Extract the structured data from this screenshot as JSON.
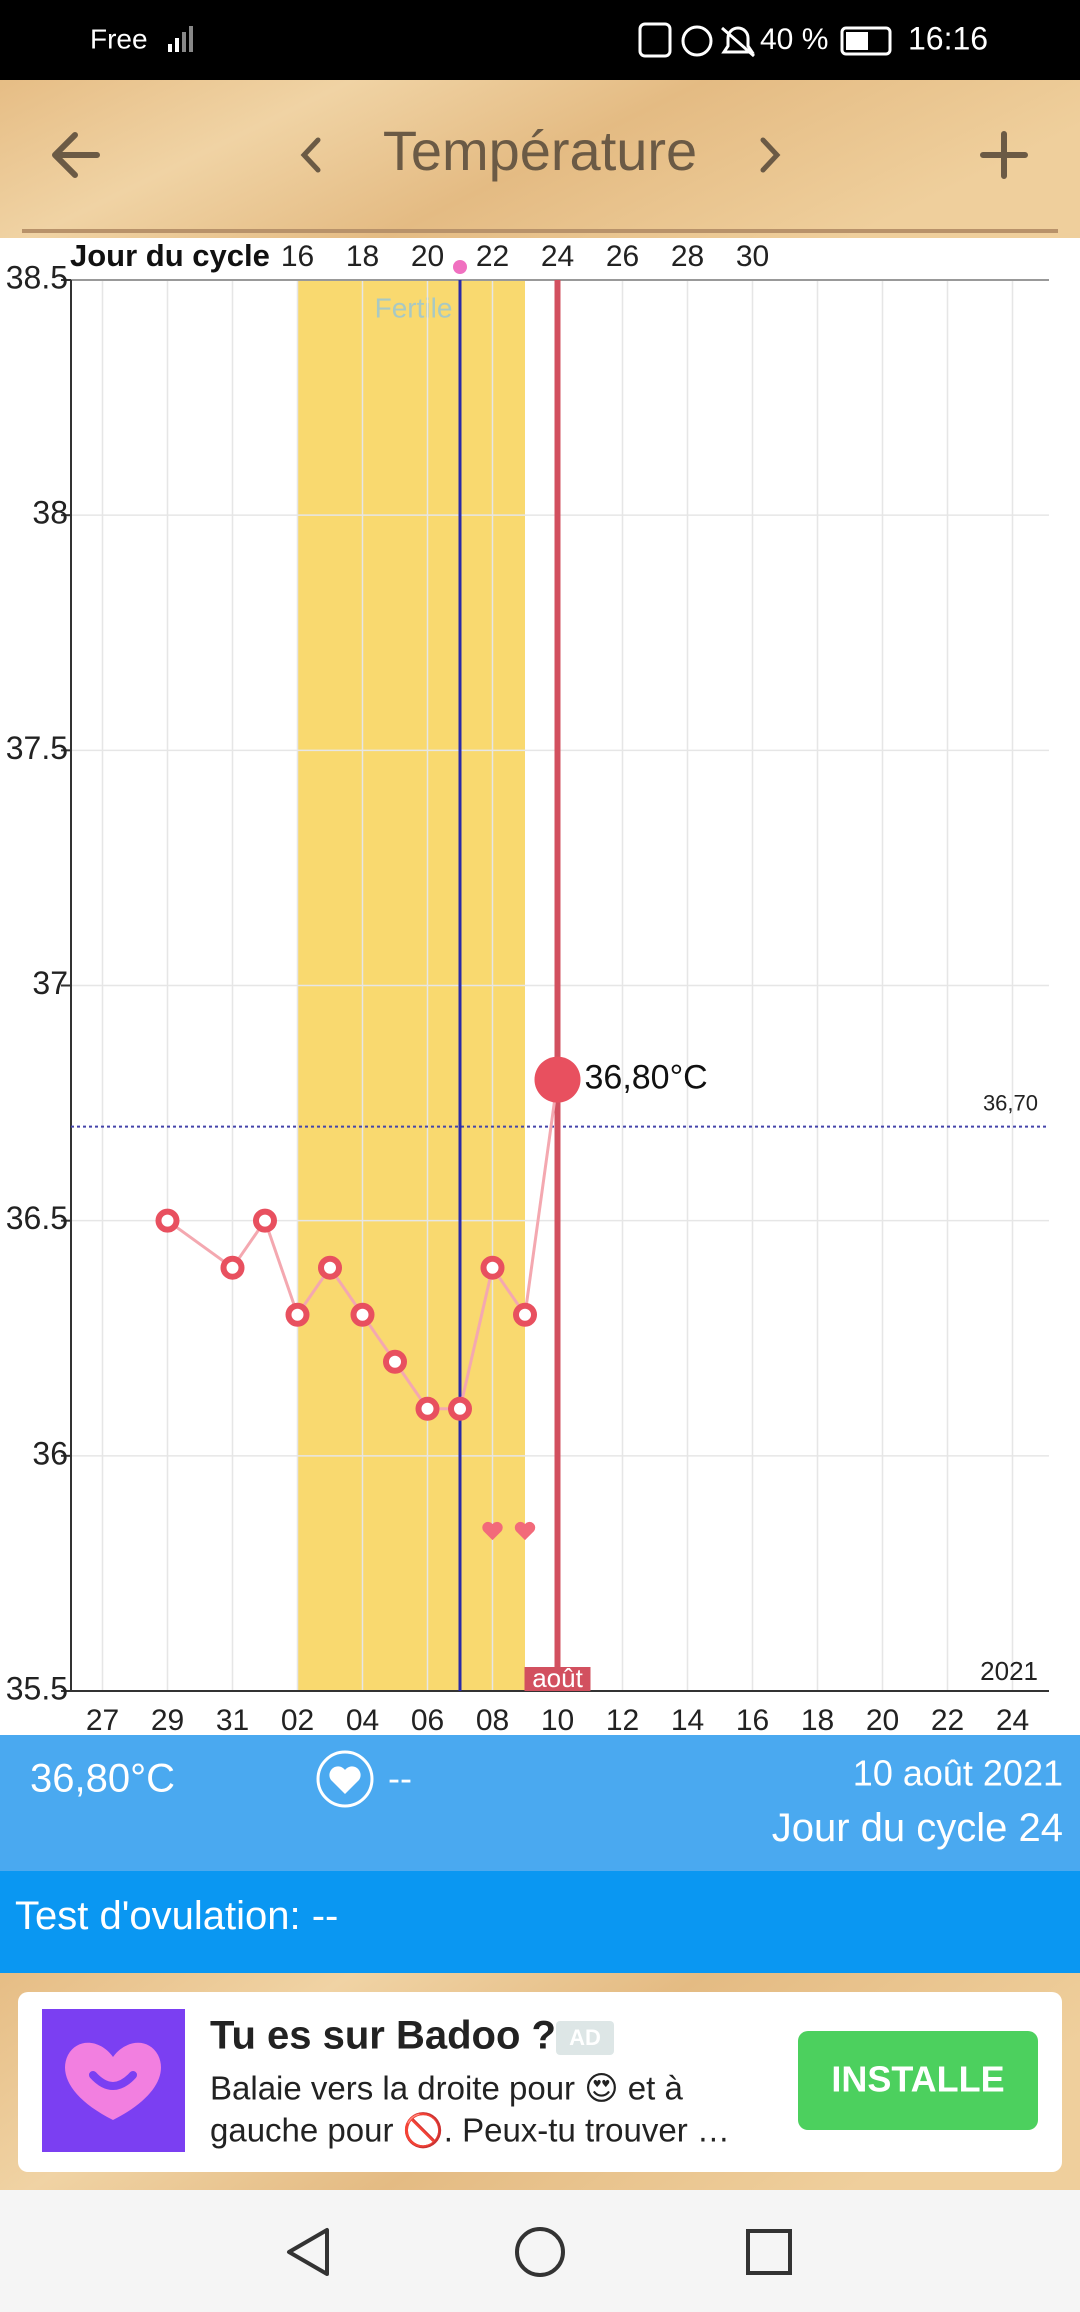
{
  "status_bar": {
    "carrier": "Free",
    "battery": "40 %",
    "time": "16:16"
  },
  "header": {
    "title": "Température"
  },
  "chart_data": {
    "type": "line",
    "top_axis": {
      "label": "Jour du cycle",
      "ticks": [
        16,
        18,
        20,
        22,
        24,
        26,
        28,
        30
      ]
    },
    "categories": [
      null,
      "27",
      null,
      "29",
      null,
      "31",
      null,
      "02",
      null,
      "04",
      null,
      "06",
      null,
      "08",
      null,
      "10",
      null,
      "12",
      null,
      "14",
      null,
      "16",
      null,
      "18",
      null,
      "20",
      null,
      "22",
      null,
      "24",
      null
    ],
    "series": [
      {
        "name": "Température",
        "color": "#e8505f",
        "values": [
          null,
          null,
          null,
          36.5,
          null,
          36.4,
          36.5,
          36.3,
          36.4,
          36.3,
          36.2,
          36.1,
          36.1,
          36.4,
          36.3,
          36.8,
          null,
          null,
          null,
          null,
          null,
          null,
          null,
          null,
          null,
          null,
          null,
          null,
          null,
          null,
          null
        ],
        "value_labels": [
          null,
          null,
          null,
          null,
          null,
          null,
          null,
          null,
          null,
          null,
          null,
          null,
          null,
          null,
          null,
          "36,80°C",
          null,
          null,
          null,
          null,
          null,
          null,
          null,
          null,
          null,
          null,
          null,
          null,
          null,
          null,
          null
        ]
      }
    ],
    "ylim": [
      35.5,
      38.5
    ],
    "yticks": [
      35.5,
      36,
      36.5,
      37,
      37.5,
      38,
      38.5
    ],
    "grid": true,
    "coverline": {
      "value": 36.7,
      "label": "36,70"
    },
    "fertile_label": "Fertile",
    "month_label": "août",
    "year_label": "2021"
  },
  "info": {
    "date": "10 août 2021",
    "cycle_label": "Jour du cycle",
    "cycle_day": 24,
    "heart": "--"
  },
  "test": {
    "label": "Test d'ovulation:",
    "value": "--"
  },
  "ad": {
    "title": "Tu es sur Badoo ?",
    "badge": "AD",
    "line1": "Balaie vers la droite pour 😍 et à",
    "line2": "gauche pour 🚫. Peux-tu trouver …",
    "button": "INSTALLE"
  }
}
